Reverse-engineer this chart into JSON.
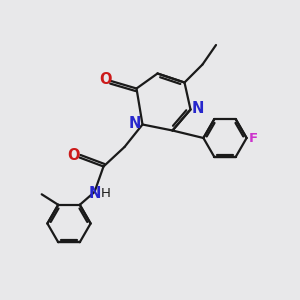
{
  "bg_color": "#e8e8ea",
  "bond_color": "#1a1a1a",
  "n_color": "#2626cc",
  "o_color": "#cc1a1a",
  "f_color": "#cc33cc",
  "line_width": 1.6,
  "font_size": 9.5,
  "xlim": [
    0,
    10
  ],
  "ylim": [
    0,
    10
  ]
}
